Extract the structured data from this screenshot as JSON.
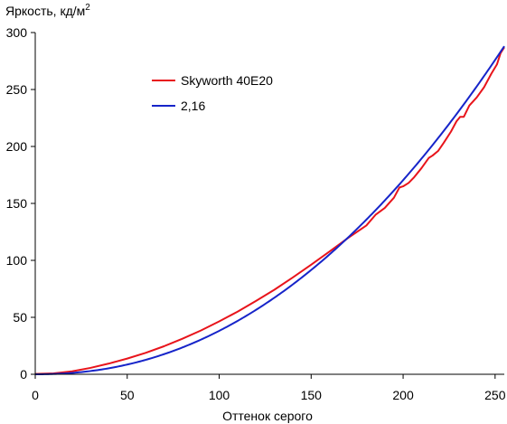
{
  "chart_data": {
    "type": "line",
    "ylabel": "Яркость, кд/м",
    "ylabel_sup": "2",
    "xlabel": "Оттенок серого",
    "xlim": [
      0,
      255
    ],
    "ylim": [
      0,
      300
    ],
    "xticks": [
      0,
      50,
      100,
      150,
      200,
      250
    ],
    "yticks": [
      0,
      50,
      100,
      150,
      200,
      250,
      300
    ],
    "grid": false,
    "legend_position": "upper-left",
    "series": [
      {
        "name": "Skyworth 40E20",
        "color": "#e8141b",
        "x": [
          0,
          10,
          20,
          30,
          40,
          50,
          60,
          70,
          80,
          90,
          100,
          110,
          120,
          130,
          140,
          150,
          160,
          170,
          180,
          185,
          190,
          195,
          198,
          200,
          203,
          206,
          210,
          214,
          216,
          219,
          222,
          226,
          229,
          231,
          233,
          236,
          240,
          244,
          248,
          251,
          253,
          255
        ],
        "y": [
          0.3,
          0.8,
          2.6,
          5.6,
          9.4,
          13.8,
          18.8,
          24.6,
          31.2,
          38.4,
          46.4,
          55.0,
          64.4,
          74.2,
          85.0,
          96.2,
          107.8,
          119.6,
          130.6,
          140.0,
          146.0,
          155.0,
          164.0,
          165.0,
          168.0,
          173.0,
          181.0,
          190.0,
          192.0,
          196.0,
          203.0,
          213.0,
          222.0,
          226.0,
          226.0,
          236.0,
          243.0,
          252.0,
          264.0,
          272.0,
          282.0,
          287.0
        ]
      },
      {
        "name": "2,16",
        "color": "#1624c9",
        "gamma": 2.16,
        "ymax": 288
      }
    ]
  }
}
